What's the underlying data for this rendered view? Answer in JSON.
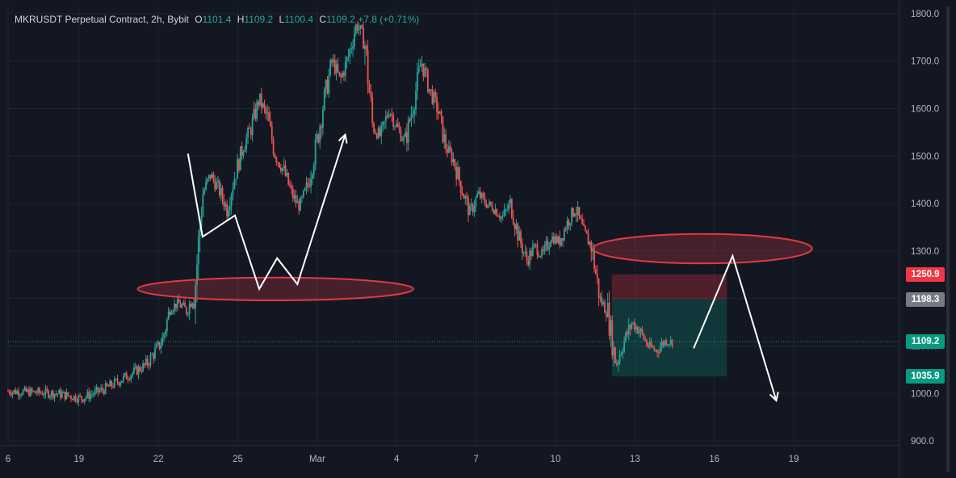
{
  "header": {
    "symbol": "MKRUSDT Perpetual Contract, 2h, Bybit",
    "open_label": "O",
    "open": "1101.4",
    "high_label": "H",
    "high": "1109.2",
    "low_label": "L",
    "low": "1100.4",
    "close_label": "C",
    "close": "1109.2",
    "change": "+7.8 (+0.71%)"
  },
  "colors": {
    "background": "#131722",
    "up": "#26a69a",
    "down": "#ef5350",
    "grid": "#1f2433",
    "ellipse": "#e03a46",
    "annotation_line": "#ffffff"
  },
  "chart_data": {
    "type": "candlestick",
    "timeframe": "2h",
    "x_ticks": [
      "6",
      "19",
      "22",
      "25",
      "Mar",
      "4",
      "7",
      "10",
      "13",
      "16",
      "19"
    ],
    "y_ticks": [
      "900.0",
      "1000.0",
      "1100.0",
      "1200.0",
      "1300.0",
      "1400.0",
      "1500.0",
      "1600.0",
      "1700.0",
      "1800.0"
    ],
    "ylim": [
      890,
      1815
    ],
    "price_path": [
      [
        0,
        1005
      ],
      [
        6,
        1000
      ],
      [
        9,
        990
      ],
      [
        12,
        1010
      ],
      [
        17,
        1060
      ],
      [
        19,
        1110
      ],
      [
        20,
        1180
      ],
      [
        21,
        1190
      ],
      [
        22,
        1175
      ],
      [
        23,
        1210
      ],
      [
        24,
        1420
      ],
      [
        25,
        1460
      ],
      [
        26,
        1430
      ],
      [
        27,
        1390
      ],
      [
        28,
        1460
      ],
      [
        29,
        1520
      ],
      [
        30,
        1560
      ],
      [
        31,
        1620
      ],
      [
        32,
        1580
      ],
      [
        33,
        1500
      ],
      [
        34,
        1470
      ],
      [
        35,
        1420
      ],
      [
        36,
        1390
      ],
      [
        37,
        1440
      ],
      [
        38,
        1520
      ],
      [
        39,
        1620
      ],
      [
        40,
        1700
      ],
      [
        41,
        1660
      ],
      [
        42,
        1710
      ],
      [
        43,
        1780
      ],
      [
        44,
        1740
      ],
      [
        45,
        1560
      ],
      [
        46,
        1540
      ],
      [
        47,
        1600
      ],
      [
        48,
        1560
      ],
      [
        49,
        1530
      ],
      [
        50,
        1610
      ],
      [
        51,
        1700
      ],
      [
        52,
        1640
      ],
      [
        53,
        1600
      ],
      [
        54,
        1520
      ],
      [
        55,
        1490
      ],
      [
        56,
        1430
      ],
      [
        57,
        1380
      ],
      [
        58,
        1420
      ],
      [
        59,
        1400
      ],
      [
        60,
        1390
      ],
      [
        61,
        1370
      ],
      [
        62,
        1400
      ],
      [
        63,
        1330
      ],
      [
        64,
        1280
      ],
      [
        65,
        1310
      ],
      [
        66,
        1290
      ],
      [
        67,
        1330
      ],
      [
        68,
        1320
      ],
      [
        69,
        1360
      ],
      [
        70,
        1390
      ],
      [
        71,
        1340
      ],
      [
        72,
        1310
      ],
      [
        73,
        1200
      ],
      [
        74,
        1170
      ],
      [
        75,
        1060
      ],
      [
        76,
        1110
      ],
      [
        77,
        1150
      ],
      [
        78,
        1130
      ],
      [
        79,
        1100
      ],
      [
        80,
        1090
      ],
      [
        81,
        1110
      ],
      [
        82,
        1109
      ]
    ],
    "last_price": "1109.2",
    "price_tags": [
      {
        "label": "1250.9",
        "value": 1250.9,
        "color": "#f23645"
      },
      {
        "label": "1198.3",
        "value": 1198.3,
        "color": "#787b86"
      },
      {
        "label": "1109.2",
        "value": 1109.2,
        "color": "#089981"
      },
      {
        "label": "1035.9",
        "value": 1035.9,
        "color": "#089981"
      }
    ],
    "position_box": {
      "x_start": 74.5,
      "x_end": 88.7,
      "stop_loss": 1250.9,
      "entry": 1198.3,
      "take_profit": 1035.9
    },
    "ellipses": [
      {
        "x_start": 16.0,
        "x_end": 50.0,
        "center": 1220,
        "height": 48
      },
      {
        "x_start": 72.2,
        "x_end": 99.2,
        "center": 1305,
        "height": 62
      }
    ],
    "annotation_zigzags": [
      [
        [
          22.2,
          1505
        ],
        [
          24.0,
          1330
        ],
        [
          28.0,
          1375
        ],
        [
          31.0,
          1220
        ],
        [
          33.2,
          1285
        ],
        [
          35.7,
          1230
        ],
        [
          41.6,
          1545
        ]
      ],
      [
        [
          84.6,
          1095
        ],
        [
          89.4,
          1290
        ],
        [
          94.8,
          985
        ]
      ]
    ]
  }
}
